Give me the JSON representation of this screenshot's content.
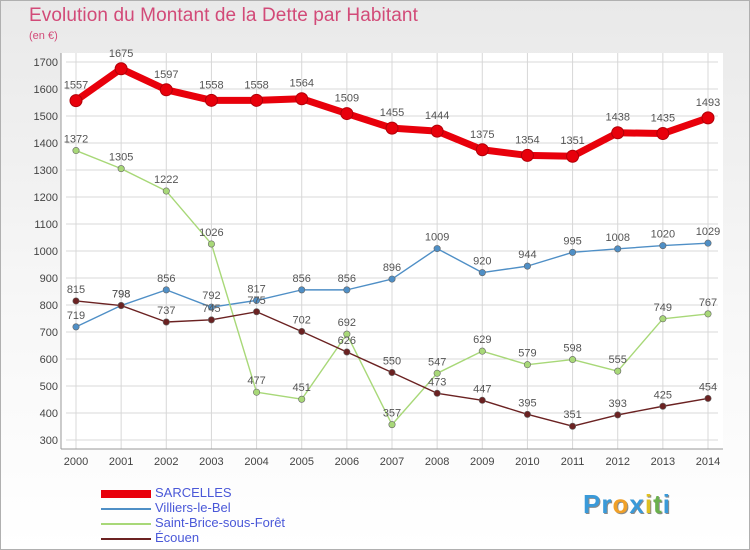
{
  "title": "Evolution du Montant de la Dette par Habitant",
  "unit": "(en €)",
  "brand": {
    "letters": [
      "P",
      "r",
      "o",
      "x",
      "i",
      "t",
      "i"
    ],
    "colors": [
      "#3a9ad9",
      "#3a9ad9",
      "#f0a028",
      "#3a9ad9",
      "#e0c020",
      "#6ab04c",
      "#3a9ad9"
    ]
  },
  "chart_data": {
    "type": "line",
    "x": [
      "2000",
      "2001",
      "2002",
      "2003",
      "2004",
      "2005",
      "2006",
      "2007",
      "2008",
      "2009",
      "2010",
      "2011",
      "2012",
      "2013",
      "2014"
    ],
    "ylim": [
      300,
      1700
    ],
    "yticks": [
      300,
      400,
      500,
      600,
      700,
      800,
      900,
      1000,
      1100,
      1200,
      1300,
      1400,
      1500,
      1600,
      1700
    ],
    "grid": true,
    "legend": "bottom-left",
    "series": [
      {
        "name": "SARCELLES",
        "color": "#e8000b",
        "bold": true,
        "values": [
          1557,
          1675,
          1597,
          1558,
          1558,
          1564,
          1509,
          1455,
          1444,
          1375,
          1354,
          1351,
          1438,
          1435,
          1493
        ]
      },
      {
        "name": "Villiers-le-Bel",
        "color": "#4f8fc6",
        "bold": false,
        "values": [
          719,
          798,
          856,
          792,
          817,
          856,
          856,
          896,
          1009,
          920,
          944,
          995,
          1008,
          1020,
          1029
        ]
      },
      {
        "name": "Saint-Brice-sous-Forêt",
        "color": "#a8d878",
        "bold": false,
        "values": [
          1372,
          1305,
          1222,
          1026,
          477,
          451,
          692,
          357,
          547,
          629,
          579,
          598,
          555,
          749,
          767
        ]
      },
      {
        "name": "Écouen",
        "color": "#6b2222",
        "bold": false,
        "values": [
          815,
          798,
          737,
          745,
          775,
          702,
          626,
          550,
          473,
          447,
          395,
          351,
          393,
          425,
          454
        ]
      }
    ]
  }
}
